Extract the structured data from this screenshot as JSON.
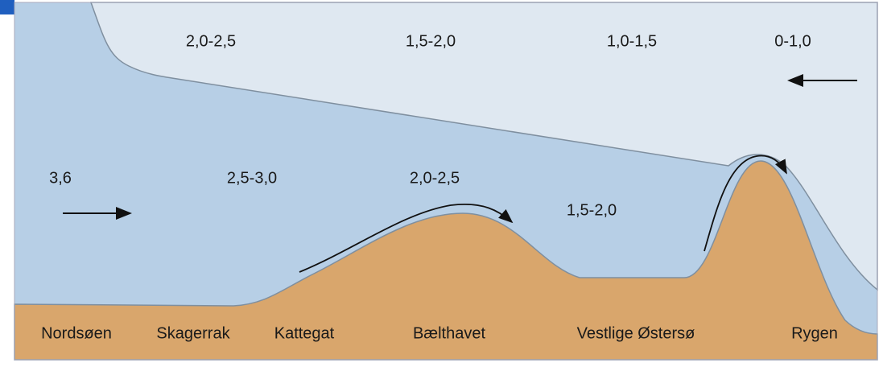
{
  "surface_layer": {
    "labels": [
      "2,0-2,5",
      "1,5-2,0",
      "1,0-1,5",
      "0-1,0"
    ]
  },
  "deep_layer": {
    "labels": [
      "3,6",
      "2,5-3,0",
      "2,0-2,5",
      "1,5-2,0"
    ]
  },
  "locations": [
    "Nordsøen",
    "Skagerrak",
    "Kattegat",
    "Bælthavet",
    "Vestlige Østersø",
    "Rygen"
  ]
}
